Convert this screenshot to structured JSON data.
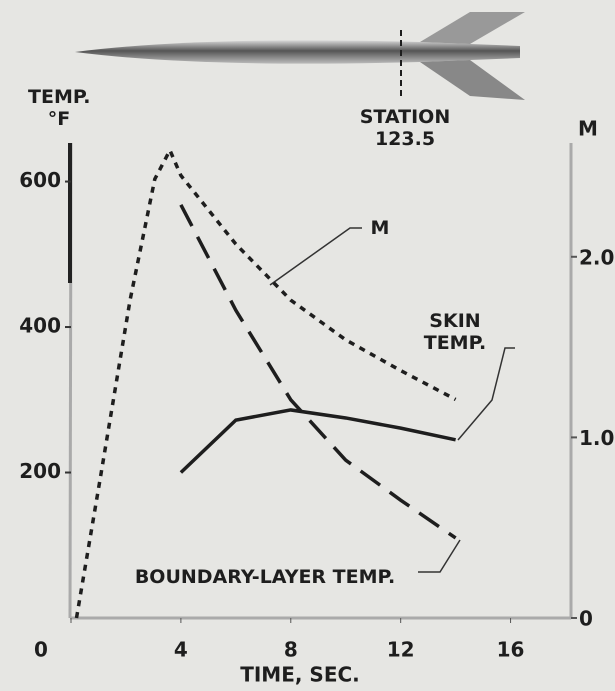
{
  "chart_data": {
    "type": "line",
    "xlabel": "TIME, SEC.",
    "ylabel": "TEMP. °F",
    "y2label": "M",
    "annotations": [
      "STATION 123.5"
    ],
    "xlim": [
      0,
      18.2
    ],
    "xticks": [
      0,
      4,
      8,
      12,
      16
    ],
    "ylim": [
      0,
      653
    ],
    "yticks": [
      200,
      400,
      600
    ],
    "y2lim": [
      0,
      2.63
    ],
    "y2ticks": [
      0,
      {
        "value": 1,
        "label": "1.0"
      },
      {
        "value": 2,
        "label": "2.0"
      }
    ],
    "series": [
      {
        "name": "M",
        "color": "#1e1e1e",
        "axis": "y2",
        "dash": "short",
        "x": [
          0.2,
          1.05,
          2.15,
          3.05,
          3.6,
          4,
          6,
          8,
          10,
          12,
          14
        ],
        "values": [
          0,
          0.76,
          1.76,
          2.43,
          2.59,
          2.45,
          2.07,
          1.76,
          1.54,
          1.37,
          1.21
        ]
      },
      {
        "name": "SKIN TEMP.",
        "color": "#1e1e1e",
        "dash": "solid",
        "x": [
          4,
          6,
          8,
          10,
          12,
          14
        ],
        "values": [
          200,
          272,
          286,
          275,
          261,
          245
        ]
      },
      {
        "name": "BOUNDARY-LAYER TEMP.",
        "color": "#1e1e1e",
        "dash": "long",
        "x": [
          4,
          6,
          8,
          10,
          12,
          14
        ],
        "values": [
          568,
          423,
          300,
          217,
          162,
          110
        ]
      }
    ]
  }
}
